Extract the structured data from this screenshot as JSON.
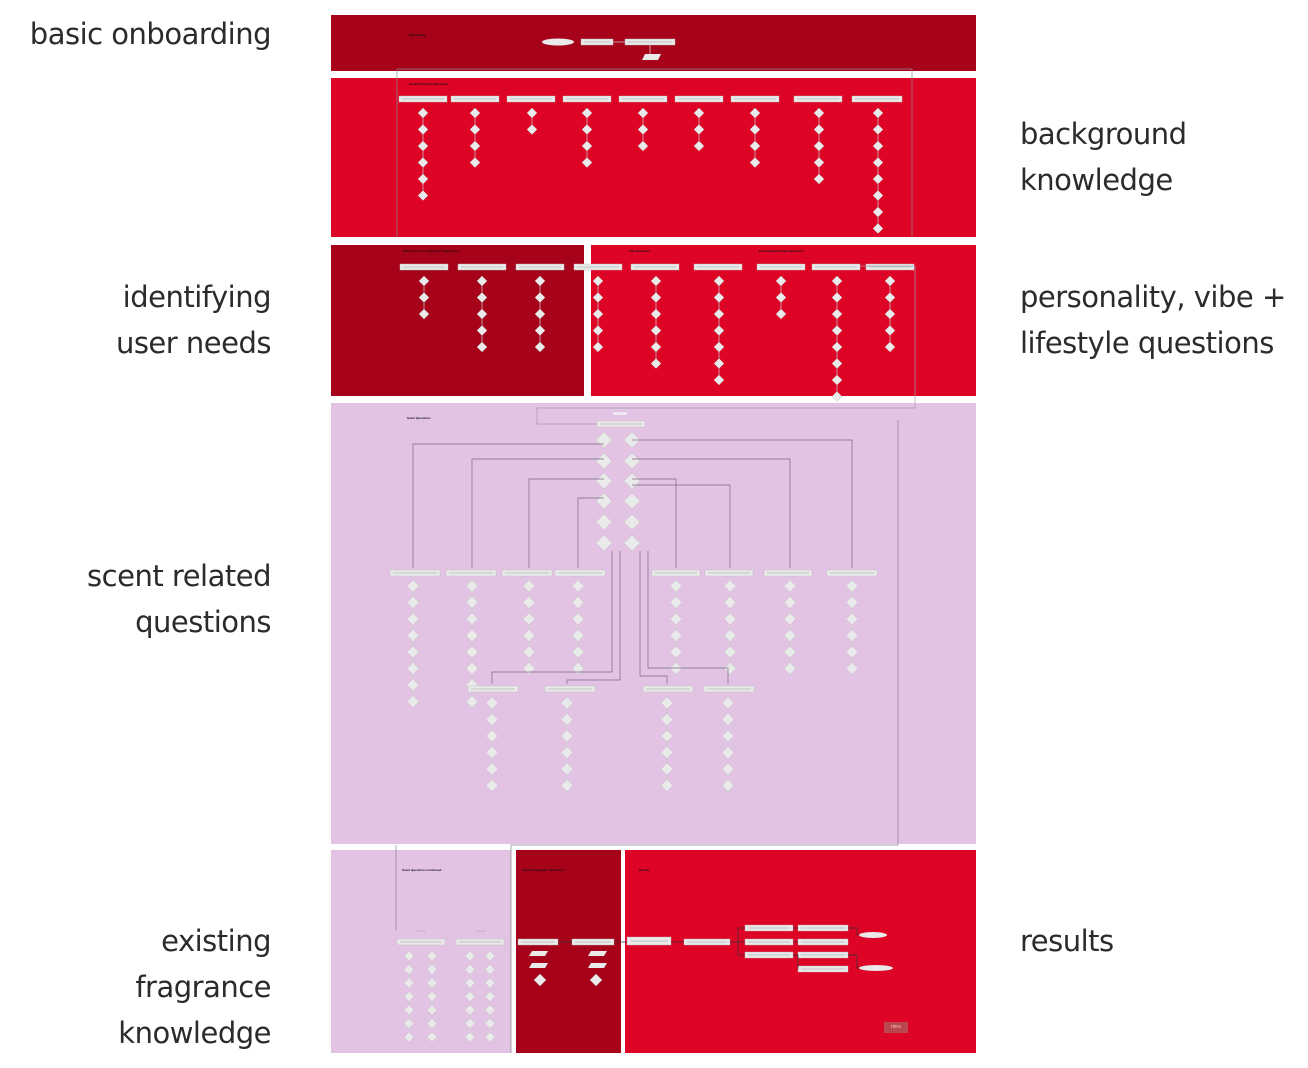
{
  "labels": {
    "basic_onboarding": [
      "basic onboarding"
    ],
    "background_knowledge": [
      "background",
      "knowledge"
    ],
    "identifying_user_needs": [
      "identifying",
      "user needs"
    ],
    "personality_vibe": [
      "personality, vibe +",
      "lifestyle questions"
    ],
    "scent_related": [
      "scent related",
      "questions"
    ],
    "existing_fragrance": [
      "existing",
      "fragrance",
      "knowledge"
    ],
    "results": [
      "results"
    ]
  },
  "sections": {
    "onboarding": "Onboarding",
    "general_perfume": "General Perfume Questions",
    "identifying_needs": "What are users looking for? Needs test",
    "vibe": "Vibe Questions",
    "personality": "Personality/Lifestyle Questions",
    "scent": "Scent Questions",
    "scent_continued": "Scent Questions Continued",
    "existing_fragrance": "Existing Fragrance Questions",
    "results": "Results"
  },
  "logo": "miro",
  "colors": {
    "dark_red": "#a6031b",
    "red": "#dd0426",
    "lilac": "#e2c3e4",
    "card": "#eaeaea",
    "connector": "#7a6a7e"
  }
}
